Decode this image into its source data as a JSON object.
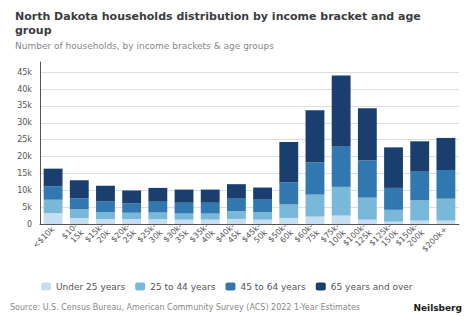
{
  "chart_data": {
    "type": "bar",
    "stacked": true,
    "title": "North Dakota households distribution by income bracket and age\ngroup",
    "subtitle": "Number of households, by income brackets & age groups",
    "annotations": [
      "Source: U.S. Census Bureau, American Community Survey (ACS) 2022 1-Year Estimates",
      "Neilsberg"
    ],
    "categories": [
      "<$10k",
      "$10-\n15k",
      "$15k-\n20k",
      "$20k-\n25k",
      "$25k-\n30k",
      "$30k-\n35k",
      "$35k-\n40k",
      "$40k-\n45k",
      "$45k-\n50k",
      "$50k-\n60k",
      "$60k-\n75k",
      "$75k-\n100k",
      "$100k-\n125k",
      "$125k-\n150k",
      "$150k-\n200k",
      "$200k+"
    ],
    "series": [
      {
        "name": "Under 25 years",
        "color": "#c6dff0",
        "values": [
          3200,
          1800,
          1500,
          1500,
          1400,
          1300,
          1300,
          1500,
          1300,
          1800,
          2200,
          2500,
          1300,
          700,
          1000,
          1000
        ]
      },
      {
        "name": "25 to 44 years",
        "color": "#7ab8d9",
        "values": [
          4000,
          2600,
          2000,
          1800,
          2000,
          1800,
          1800,
          2300,
          2200,
          4000,
          6500,
          8500,
          6500,
          3500,
          6000,
          6500
        ]
      },
      {
        "name": "45 to 64 years",
        "color": "#3278b0",
        "values": [
          4000,
          3200,
          3200,
          2800,
          3200,
          3200,
          3200,
          3700,
          3700,
          6500,
          9500,
          12000,
          11000,
          6500,
          8500,
          8500
        ]
      },
      {
        "name": "65 years and over",
        "color": "#1a3f6f",
        "values": [
          5200,
          5400,
          4600,
          3800,
          4100,
          3900,
          3900,
          4300,
          3600,
          12000,
          15500,
          21000,
          15500,
          12000,
          9000,
          9500
        ]
      }
    ],
    "ylim": [
      0,
      48000
    ],
    "yticks": [
      0,
      {
        "value": 5000,
        "label": "5k"
      },
      {
        "value": 10000,
        "label": "10k"
      },
      {
        "value": 15000,
        "label": "15k"
      },
      {
        "value": 20000,
        "label": "20k"
      },
      {
        "value": 25000,
        "label": "25k"
      },
      {
        "value": 30000,
        "label": "30k"
      },
      {
        "value": 35000,
        "label": "35k"
      },
      {
        "value": 40000,
        "label": "40k"
      },
      {
        "value": 45000,
        "label": "45k"
      }
    ],
    "grid": true,
    "legend": "lower left"
  }
}
